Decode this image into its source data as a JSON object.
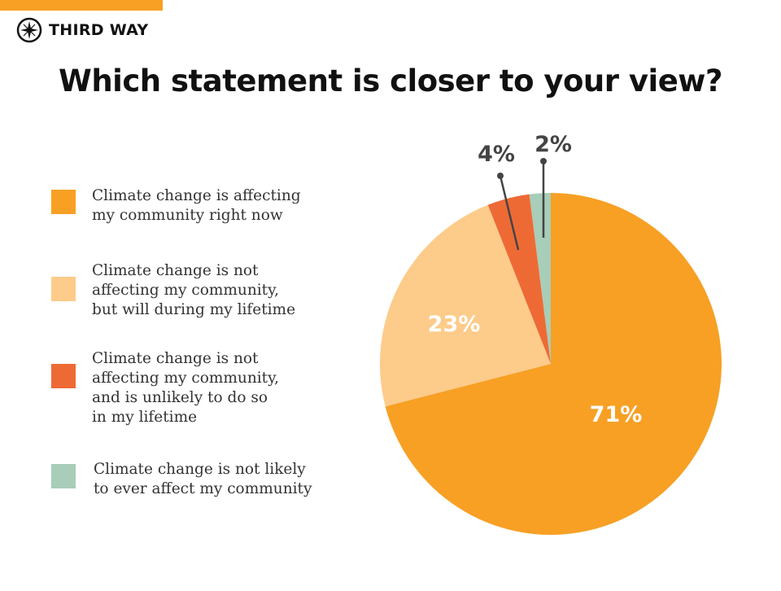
{
  "brand": {
    "name": "THIRD WAY",
    "icon": "compass-icon",
    "accent_color": "#F7A024"
  },
  "chart_data": {
    "type": "pie",
    "title": "Which statement is closer to your view?",
    "start": "top",
    "direction": "clockwise",
    "legend_position": "left",
    "slices": [
      {
        "label": "Climate change is affecting\nmy community right now",
        "value": 71,
        "value_label": "71%",
        "color": "#F7A024"
      },
      {
        "label": "Climate change is not\naffecting my community,\nbut will during my lifetime",
        "value": 23,
        "value_label": "23%",
        "color": "#FDCB8A"
      },
      {
        "label": "Climate change is not\naffecting my community,\nand is unlikely to do so\nin my lifetime",
        "value": 4,
        "value_label": "4%",
        "color": "#EE6A35"
      },
      {
        "label": "Climate change is not likely\nto ever affect my community",
        "value": 2,
        "value_label": "2%",
        "color": "#A8CDB8"
      }
    ]
  }
}
